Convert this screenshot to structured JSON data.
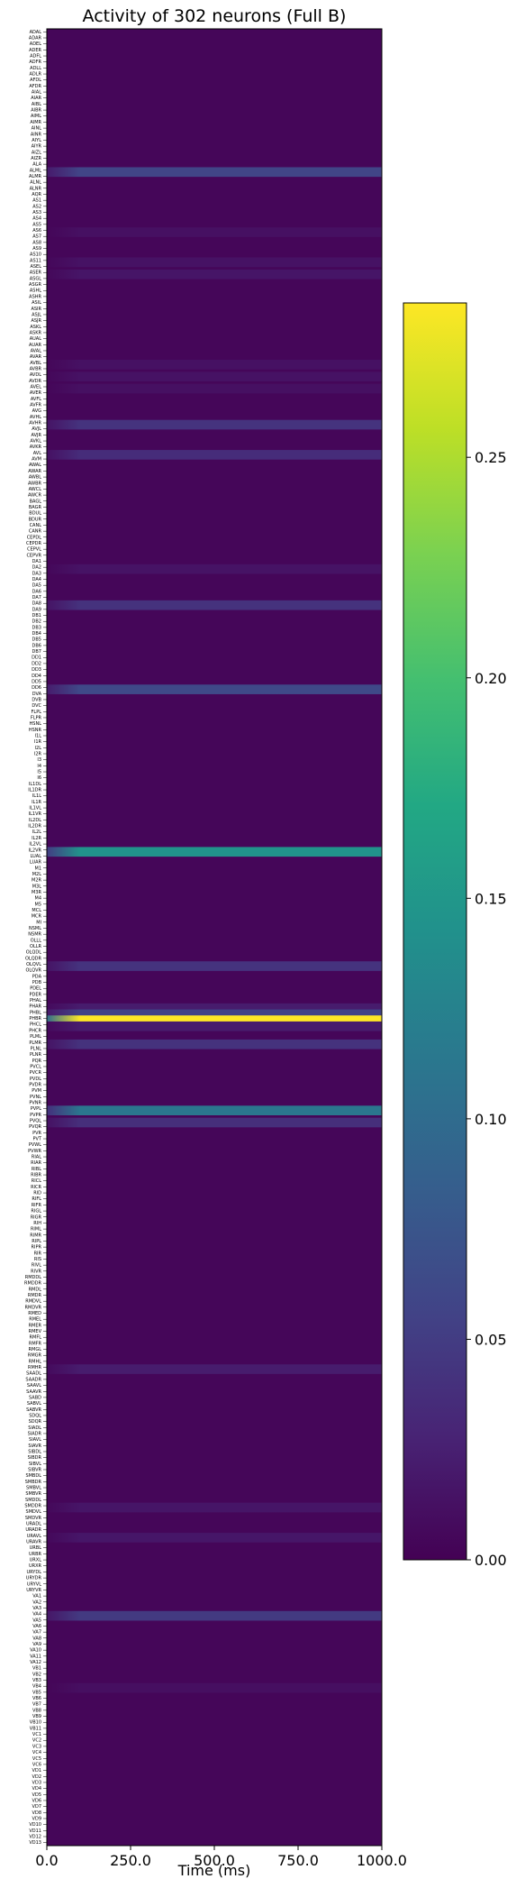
{
  "chart_data": {
    "type": "heatmap",
    "title": "Activity of 302 neurons (Full B)",
    "xlabel": "Time (ms)",
    "ylabel": "",
    "x_ticks": [
      0,
      250,
      500,
      750,
      1000
    ],
    "x_tick_labels": [
      "0.0",
      "250.0",
      "500.0",
      "750.0",
      "1000.0"
    ],
    "xlim": [
      0,
      1000
    ],
    "n_neurons": 302,
    "colormap": "viridis",
    "colorbar": {
      "vmin": 0.0,
      "vmax": 0.285,
      "ticks": [
        0.0,
        0.05,
        0.1,
        0.15,
        0.2,
        0.25
      ],
      "tick_labels": [
        "0.00",
        "0.05",
        "0.10",
        "0.15",
        "0.20",
        "0.25"
      ]
    },
    "background_value": 0.004,
    "rows": [
      {
        "index": 23,
        "label": "AIZL",
        "value": 0.058
      },
      {
        "index": 33,
        "label": "ALNR",
        "value": 0.012
      },
      {
        "index": 38,
        "label": "ASEL",
        "value": 0.014
      },
      {
        "index": 40,
        "label": "ASGL",
        "value": 0.016
      },
      {
        "index": 55,
        "label": "AVAL",
        "value": 0.013
      },
      {
        "index": 57,
        "label": "AVBL",
        "value": 0.014
      },
      {
        "index": 59,
        "label": "AVDL",
        "value": 0.012
      },
      {
        "index": 65,
        "label": "AVHL",
        "value": 0.042
      },
      {
        "index": 70,
        "label": "AVKL",
        "value": 0.036
      },
      {
        "index": 89,
        "label": "DA1",
        "value": 0.015
      },
      {
        "index": 95,
        "label": "DB1",
        "value": 0.041
      },
      {
        "index": 109,
        "label": "DD5",
        "value": 0.062
      },
      {
        "index": 136,
        "label": "LUAL",
        "value": 0.145
      },
      {
        "index": 155,
        "label": "PDA",
        "value": 0.042
      },
      {
        "index": 162,
        "label": "PHBL",
        "value": 0.022
      },
      {
        "index": 163,
        "label": "PHCL",
        "value": 0.055
      },
      {
        "index": 164,
        "label": "PLMR",
        "value": 0.285
      },
      {
        "index": 165,
        "label": "PVCL",
        "value": 0.022
      },
      {
        "index": 168,
        "label": "PVDL",
        "value": 0.041
      },
      {
        "index": 179,
        "label": "PVPL",
        "value": 0.112
      },
      {
        "index": 181,
        "label": "PVRL",
        "value": 0.038
      },
      {
        "index": 222,
        "label": "SAAVL",
        "value": 0.022
      },
      {
        "index": 245,
        "label": "URYVR",
        "value": 0.016
      },
      {
        "index": 250,
        "label": "VA1",
        "value": 0.017
      },
      {
        "index": 263,
        "label": "VB11",
        "value": 0.048
      },
      {
        "index": 275,
        "label": "VC6",
        "value": 0.011
      }
    ]
  },
  "y_tick_labels": [
    "ADAL",
    "ADAR",
    "ADEL",
    "ADER",
    "ADFL",
    "ADFR",
    "ADLL",
    "ADLR",
    "AFDL",
    "AFDR",
    "AIAL",
    "AIAR",
    "AIBL",
    "AIBR",
    "AIML",
    "AIMR",
    "AINL",
    "AINR",
    "AIYL",
    "AIYR",
    "AIZL",
    "AIZR",
    "ALA",
    "ALML",
    "ALMR",
    "ALNL",
    "ALNR",
    "AQR",
    "AS1",
    "AS2",
    "AS3",
    "AS4",
    "AS5",
    "AS6",
    "AS7",
    "AS8",
    "AS9",
    "AS10",
    "AS11",
    "ASEL",
    "ASER",
    "ASGL",
    "ASGR",
    "ASHL",
    "ASHR",
    "ASIL",
    "ASIR",
    "ASJL",
    "ASJR",
    "ASKL",
    "ASKR",
    "AUAL",
    "AUAR",
    "AVAL",
    "AVAR",
    "AVBL",
    "AVBR",
    "AVDL",
    "AVDR",
    "AVEL",
    "AVER",
    "AVFL",
    "AVFR",
    "AVG",
    "AVHL",
    "AVHR",
    "AVJL",
    "AVJR",
    "AVKL",
    "AVKR",
    "AVL",
    "AVM",
    "AWAL",
    "AWAR",
    "AWBL",
    "AWBR",
    "AWCL",
    "AWCR",
    "BAGL",
    "BAGR",
    "BDUL",
    "BDUR",
    "CANL",
    "CANR",
    "CEPDL",
    "CEPDR",
    "CEPVL",
    "CEPVR",
    "DA1",
    "DA2",
    "DA3",
    "DA4",
    "DA5",
    "DA6",
    "DA7",
    "DA8",
    "DA9",
    "DB1",
    "DB2",
    "DB3",
    "DB4",
    "DB5",
    "DB6",
    "DB7",
    "DD1",
    "DD2",
    "DD3",
    "DD4",
    "DD5",
    "DD6",
    "DVA",
    "DVB",
    "DVC",
    "FLPL",
    "FLPR",
    "HSNL",
    "HSNR",
    "I1L",
    "I1R",
    "I2L",
    "I2R",
    "I3",
    "I4",
    "I5",
    "I6",
    "IL1DL",
    "IL1DR",
    "IL1L",
    "IL1R",
    "IL1VL",
    "IL1VR",
    "IL2DL",
    "IL2DR",
    "IL2L",
    "IL2R",
    "IL2VL",
    "IL2VR",
    "LUAL",
    "LUAR",
    "M1",
    "M2L",
    "M2R",
    "M3L",
    "M3R",
    "M4",
    "M5",
    "MCL",
    "MCR",
    "MI",
    "NSML",
    "NSMR",
    "OLLL",
    "OLLR",
    "OLQDL",
    "OLQDR",
    "OLQVL",
    "OLQVR",
    "PDA",
    "PDB",
    "PDEL",
    "PDER",
    "PHAL",
    "PHAR",
    "PHBL",
    "PHBR",
    "PHCL",
    "PHCR",
    "PLML",
    "PLMR",
    "PLNL",
    "PLNR",
    "PQR",
    "PVCL",
    "PVCR",
    "PVDL",
    "PVDR",
    "PVM",
    "PVNL",
    "PVNR",
    "PVPL",
    "PVPR",
    "PVQL",
    "PVQR",
    "PVR",
    "PVT",
    "PVWL",
    "PVWR",
    "RIAL",
    "RIAR",
    "RIBL",
    "RIBR",
    "RICL",
    "RICR",
    "RID",
    "RIFL",
    "RIFR",
    "RIGL",
    "RIGR",
    "RIH",
    "RIML",
    "RIMR",
    "RIPL",
    "RIPR",
    "RIR",
    "RIS",
    "RIVL",
    "RIVR",
    "RMDDL",
    "RMDDR",
    "RMDL",
    "RMDR",
    "RMDVL",
    "RMDVR",
    "RMED",
    "RMEL",
    "RMER",
    "RMEV",
    "RMFL",
    "RMFR",
    "RMGL",
    "RMGR",
    "RMHL",
    "RMHR",
    "SAADL",
    "SAADR",
    "SAAVL",
    "SAAVR",
    "SABD",
    "SABVL",
    "SABVR",
    "SDQL",
    "SDQR",
    "SIADL",
    "SIADR",
    "SIAVL",
    "SIAVR",
    "SIBDL",
    "SIBDR",
    "SIBVL",
    "SIBVR",
    "SMBDL",
    "SMBDR",
    "SMBVL",
    "SMBVR",
    "SMDDL",
    "SMDDR",
    "SMDVL",
    "SMDVR",
    "URADL",
    "URADR",
    "URAVL",
    "URAVR",
    "URBL",
    "URBR",
    "URXL",
    "URXR",
    "URYDL",
    "URYDR",
    "URYVL",
    "URYVR",
    "VA1",
    "VA2",
    "VA3",
    "VA4",
    "VA5",
    "VA6",
    "VA7",
    "VA8",
    "VA9",
    "VA10",
    "VA11",
    "VA12",
    "VB1",
    "VB2",
    "VB3",
    "VB4",
    "VB5",
    "VB6",
    "VB7",
    "VB8",
    "VB9",
    "VB10",
    "VB11",
    "VC1",
    "VC2",
    "VC3",
    "VC4",
    "VC5",
    "VC6",
    "VD1",
    "VD2",
    "VD3",
    "VD4",
    "VD5",
    "VD6",
    "VD7",
    "VD8",
    "VD9",
    "VD10",
    "VD11",
    "VD12",
    "VD13"
  ]
}
